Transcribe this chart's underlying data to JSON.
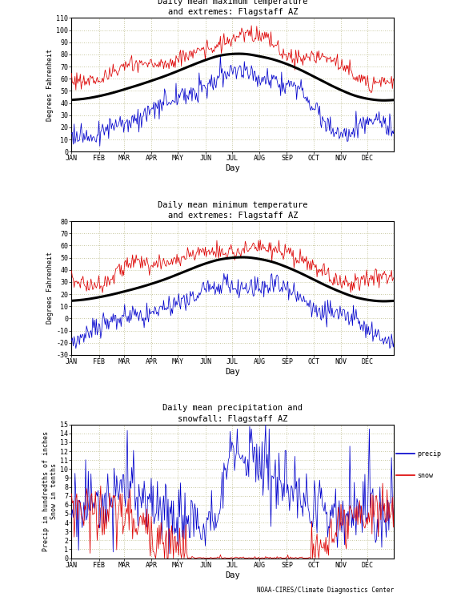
{
  "title1": "Daily mean maximum temperature\nand extremes: Flagstaff AZ",
  "title2": "Daily mean minimum temperature\nand extremes: Flagstaff AZ",
  "title3": "Daily mean precipitation and\nsnowfall: Flagstaff AZ",
  "ylabel1": "Degrees Fahrenheit",
  "ylabel2": "Degrees Fahrenheit",
  "ylabel3": "Precip in hundredths of inches\nSnow in tenths",
  "xlabel": "Day",
  "months": [
    "JAN",
    "FEB",
    "MAR",
    "APR",
    "MAY",
    "JUN",
    "JUL",
    "AUG",
    "SEP",
    "OCT",
    "NOV",
    "DEC"
  ],
  "grid_color": "#c8c8a0",
  "red_color": "#dd0000",
  "blue_color": "#0000cc",
  "black_color": "#000000",
  "max_mean_base": [
    42,
    45,
    51,
    58,
    66,
    76,
    82,
    79,
    73,
    62,
    50,
    42
  ],
  "max_upper_base": [
    58,
    60,
    67,
    73,
    79,
    87,
    94,
    91,
    85,
    75,
    65,
    58
  ],
  "max_lower_base": [
    16,
    19,
    26,
    34,
    44,
    55,
    62,
    60,
    51,
    38,
    26,
    16
  ],
  "min_mean_base": [
    14,
    17,
    22,
    28,
    36,
    46,
    51,
    50,
    43,
    32,
    21,
    14
  ],
  "min_upper_base": [
    29,
    32,
    37,
    42,
    49,
    57,
    61,
    59,
    53,
    43,
    33,
    28
  ],
  "min_lower_base": [
    -13,
    -10,
    -5,
    3,
    13,
    24,
    32,
    31,
    23,
    10,
    -2,
    -14
  ],
  "precip_base": [
    5,
    6,
    8,
    6,
    4,
    3,
    9,
    9,
    6,
    5,
    5,
    5
  ],
  "snow_base": [
    6,
    5,
    5,
    3,
    1,
    0,
    0,
    0,
    0,
    1,
    3,
    5
  ],
  "footer": "NOAA-CIRES/Climate Diagnostics Center"
}
